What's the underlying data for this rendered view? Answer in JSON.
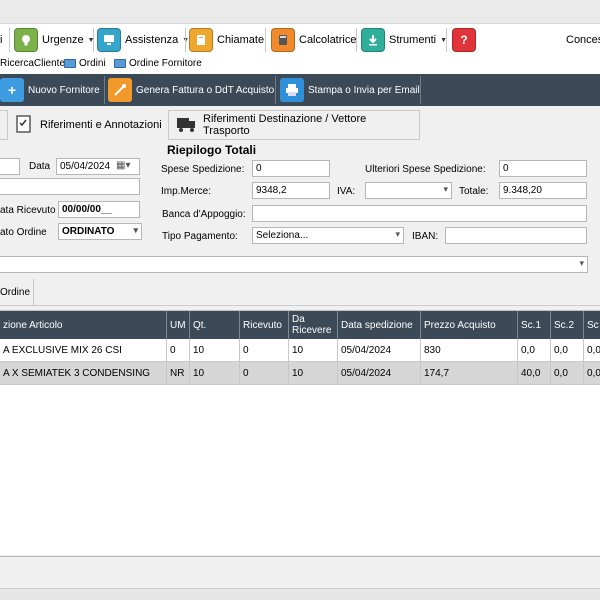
{
  "menu": {
    "item0": "i",
    "urgenze": "Urgenze",
    "assistenza": "Assistenza",
    "chiamate": "Chiamate",
    "calcolatrice": "Calcolatrice",
    "strumenti": "Strumenti",
    "conces": "Conces"
  },
  "links": {
    "ricerca_cliente": "RicercaCliente",
    "ordini": "Ordini",
    "ordine_fornitore": "Ordine Fornitore"
  },
  "actions": {
    "nuovo_fornitore": "Nuovo Fornitore",
    "genera_fattura": "Genera Fattura o DdT Acquisto",
    "stampa_invia": "Stampa o Invia per Email"
  },
  "tabs": {
    "riferimenti_annotazioni": "Riferimenti e Annotazioni",
    "riferimenti_destinazione": "Riferimenti Destinazione / Vettore Trasporto"
  },
  "form": {
    "data_label": "Data",
    "data_value": "05/04/2024",
    "data_ricevuto_label": "ata Ricevuto",
    "data_ricevuto_value": "00/00/00__",
    "stato_ordine_label": "ato Ordine",
    "stato_ordine_value": "ORDINATO"
  },
  "totals": {
    "title": "Riepilogo Totali",
    "spese_label": "Spese Spedizione:",
    "spese_value": "0",
    "ulteriori_label": "Ulteriori Spese Spedizione:",
    "ulteriori_value": "0",
    "imp_merce_label": "Imp.Merce:",
    "imp_merce_value": "9348,2",
    "iva_label": "IVA:",
    "iva_value": "",
    "totale_label": "Totale:",
    "totale_value": "9.348,20",
    "banca_label": "Banca d'Appoggio:",
    "banca_value": "",
    "tipo_pag_label": "Tipo Pagamento:",
    "tipo_pag_value": "Seleziona...",
    "iban_label": "IBAN:",
    "iban_value": ""
  },
  "subtab": {
    "ordine": "Ordine"
  },
  "grid": {
    "headers": {
      "descrizione": "zione Articolo",
      "um": "UM",
      "qt": "Qt.",
      "ricevuto": "Ricevuto",
      "da_ricevere": "Da Ricevere",
      "data_spedizione": "Data spedizione",
      "prezzo": "Prezzo Acquisto",
      "sc1": "Sc.1",
      "sc2": "Sc.2",
      "sc3": "Sc"
    },
    "rows": [
      {
        "descrizione": "A EXCLUSIVE MIX 26 CSI",
        "um": "0",
        "qt": "10",
        "ricevuto": "0",
        "da_ricevere": "10",
        "data_spedizione": "05/04/2024",
        "prezzo": "830",
        "sc1": "0,0",
        "sc2": "0,0",
        "sc3": "0,0"
      },
      {
        "descrizione": "A  X SEMIATEK 3 CONDENSING",
        "um": "NR",
        "qt": "10",
        "ricevuto": "0",
        "da_ricevere": "10",
        "data_spedizione": "05/04/2024",
        "prezzo": "174,7",
        "sc1": "40,0",
        "sc2": "0,0",
        "sc3": "0,0"
      }
    ]
  },
  "colors": {
    "dark_bar": "#3c4a58",
    "selected_row": "#d6d6d6"
  }
}
